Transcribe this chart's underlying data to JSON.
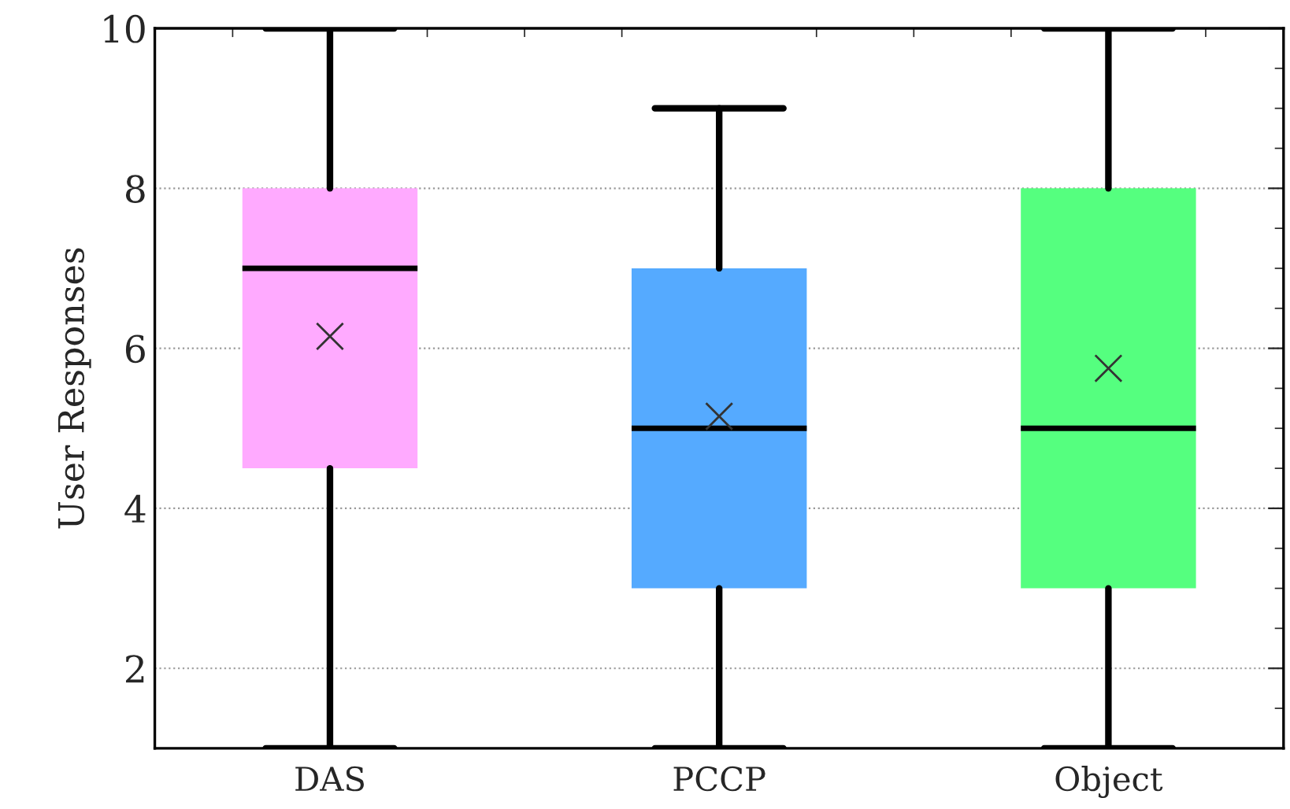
{
  "chart_data": {
    "type": "box",
    "ylabel": "User Responses",
    "categories": [
      "DAS",
      "PCCP",
      "Object"
    ],
    "colors": [
      "#ffaaff",
      "#55aaff",
      "#55ff7f"
    ],
    "boxes": [
      {
        "low": 1,
        "q1": 4.5,
        "median": 7,
        "q3": 8,
        "high": 10,
        "mean": 6.15
      },
      {
        "low": 1,
        "q1": 3,
        "median": 5,
        "q3": 7,
        "high": 9,
        "mean": 5.15
      },
      {
        "low": 1,
        "q1": 3,
        "median": 5,
        "q3": 8,
        "high": 10,
        "mean": 5.75
      }
    ],
    "ylim": [
      1,
      10
    ],
    "yticks": [
      2,
      4,
      6,
      8,
      10
    ],
    "grid": "y"
  }
}
